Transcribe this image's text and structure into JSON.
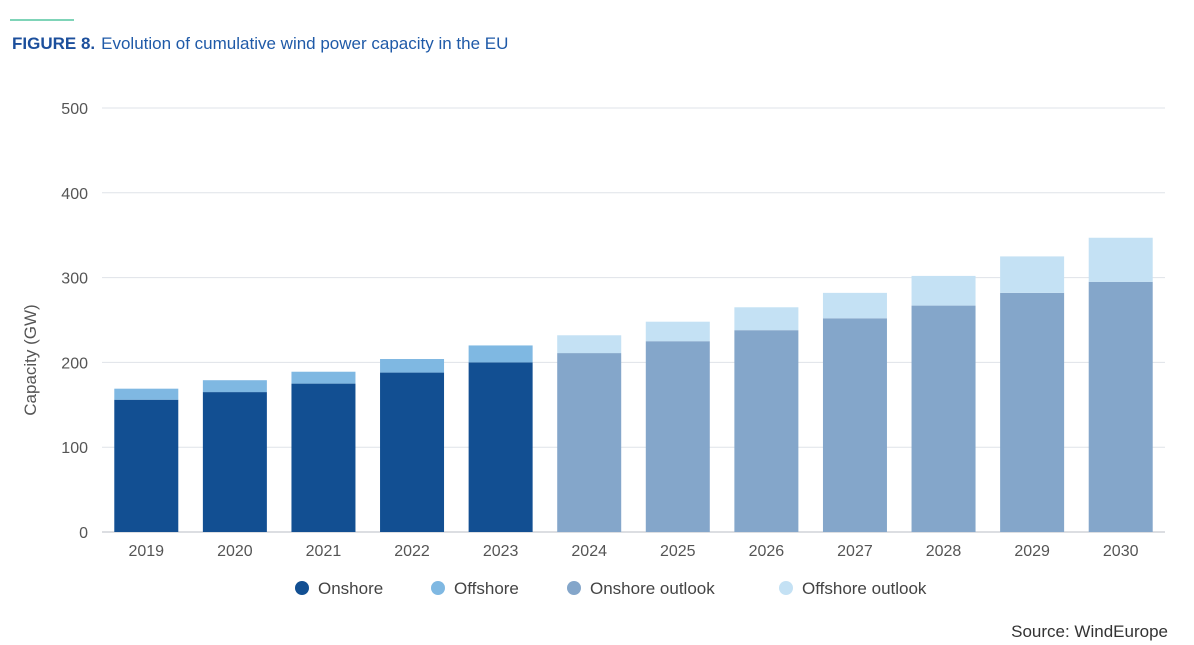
{
  "figure": {
    "number": "FIGURE 8.",
    "title": "Evolution of cumulative wind power capacity in the EU",
    "source": "Source: WindEurope"
  },
  "colors": {
    "onshore": "#124f92",
    "offshore": "#7fb8e2",
    "onshore_outlook": "#84a6ca",
    "offshore_outlook": "#c4e1f4",
    "title": "#1f5aa8",
    "grid": "#dfe3e8",
    "tick": "#555555"
  },
  "chart_data": {
    "type": "bar",
    "stacked": true,
    "title": "Evolution of cumulative wind power capacity in the EU",
    "xlabel": "",
    "ylabel": "Capacity (GW)",
    "ylim": [
      0,
      500
    ],
    "yticks": [
      0,
      100,
      200,
      300,
      400,
      500
    ],
    "grid": true,
    "legend_position": "bottom",
    "categories": [
      "2019",
      "2020",
      "2021",
      "2022",
      "2023",
      "2024",
      "2025",
      "2026",
      "2027",
      "2028",
      "2029",
      "2030"
    ],
    "series": [
      {
        "name": "Onshore",
        "key": "onshore",
        "values": [
          156,
          165,
          175,
          188,
          200,
          null,
          null,
          null,
          null,
          null,
          null,
          null
        ]
      },
      {
        "name": "Offshore",
        "key": "offshore",
        "values": [
          13,
          14,
          14,
          16,
          20,
          null,
          null,
          null,
          null,
          null,
          null,
          null
        ]
      },
      {
        "name": "Onshore outlook",
        "key": "onshore_outlook",
        "values": [
          null,
          null,
          null,
          null,
          null,
          211,
          225,
          238,
          252,
          267,
          282,
          295
        ]
      },
      {
        "name": "Offshore outlook",
        "key": "offshore_outlook",
        "values": [
          null,
          null,
          null,
          null,
          null,
          21,
          23,
          27,
          30,
          35,
          43,
          52
        ]
      }
    ]
  }
}
